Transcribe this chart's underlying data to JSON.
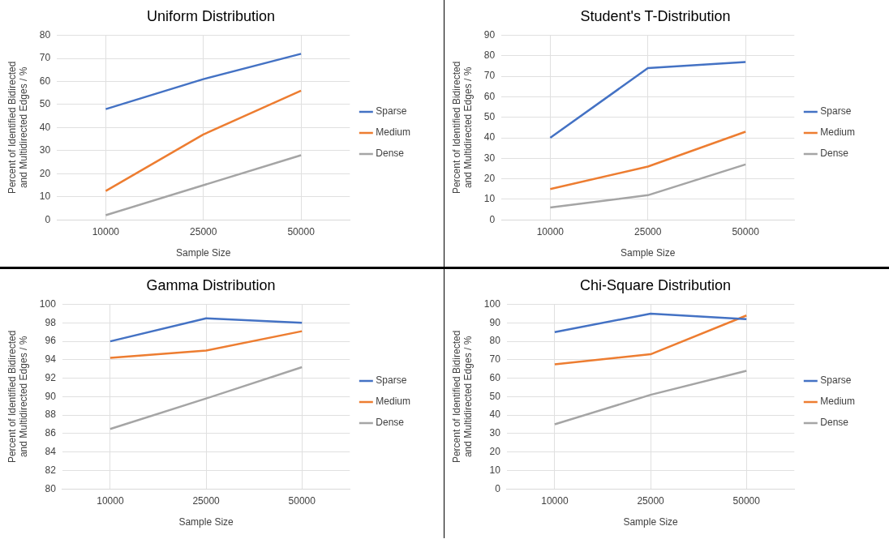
{
  "chart_data": [
    {
      "type": "line",
      "title": "Uniform Distribution",
      "xlabel": "Sample Size",
      "ylabel": "Percent of Identified Bidirected and Multidirected Edges / %",
      "categories": [
        "10000",
        "25000",
        "50000"
      ],
      "ylim": [
        0,
        80
      ],
      "yticks": [
        0,
        10,
        20,
        30,
        40,
        50,
        60,
        70,
        80
      ],
      "grid": true,
      "legend": "right",
      "marker": "none",
      "series": [
        {
          "name": "Sparse",
          "color": "#4472c4",
          "values": [
            48,
            61,
            72
          ]
        },
        {
          "name": "Medium",
          "color": "#ed7d31",
          "values": [
            12.5,
            37,
            56
          ]
        },
        {
          "name": "Dense",
          "color": "#a5a5a5",
          "values": [
            2,
            15,
            28
          ]
        }
      ]
    },
    {
      "type": "line",
      "title": "Student's T-Distribution",
      "xlabel": "Sample Size",
      "ylabel": "Percent of Identified Bidirected and Multidirected Edges / %",
      "categories": [
        "10000",
        "25000",
        "50000"
      ],
      "ylim": [
        0,
        90
      ],
      "yticks": [
        0,
        10,
        20,
        30,
        40,
        50,
        60,
        70,
        80,
        90
      ],
      "grid": true,
      "legend": "right",
      "marker": "none",
      "series": [
        {
          "name": "Sparse",
          "color": "#4472c4",
          "values": [
            40,
            74,
            77
          ]
        },
        {
          "name": "Medium",
          "color": "#ed7d31",
          "values": [
            15,
            26,
            43
          ]
        },
        {
          "name": "Dense",
          "color": "#a5a5a5",
          "values": [
            6,
            12,
            27
          ]
        }
      ]
    },
    {
      "type": "line",
      "title": "Gamma Distribution",
      "xlabel": "Sample Size",
      "ylabel": "Percent of Identified Bidirected and Multidirected Edges / %",
      "categories": [
        "10000",
        "25000",
        "50000"
      ],
      "ylim": [
        80,
        100
      ],
      "yticks": [
        80,
        82,
        84,
        86,
        88,
        90,
        92,
        94,
        96,
        98,
        100
      ],
      "grid": true,
      "legend": "right",
      "marker": "none",
      "series": [
        {
          "name": "Sparse",
          "color": "#4472c4",
          "values": [
            96,
            98.5,
            98
          ]
        },
        {
          "name": "Medium",
          "color": "#ed7d31",
          "values": [
            94.2,
            95,
            97.1
          ]
        },
        {
          "name": "Dense",
          "color": "#a5a5a5",
          "values": [
            86.5,
            89.8,
            93.2
          ]
        }
      ]
    },
    {
      "type": "line",
      "title": "Chi-Square Distribution",
      "xlabel": "Sample Size",
      "ylabel": "Percent of Identified Bidirected and Multidirected Edges / %",
      "categories": [
        "10000",
        "25000",
        "50000"
      ],
      "ylim": [
        0,
        100
      ],
      "yticks": [
        0,
        10,
        20,
        30,
        40,
        50,
        60,
        70,
        80,
        90,
        100
      ],
      "grid": true,
      "legend": "right",
      "marker": "none",
      "series": [
        {
          "name": "Sparse",
          "color": "#4472c4",
          "values": [
            85,
            95,
            92
          ]
        },
        {
          "name": "Medium",
          "color": "#ed7d31",
          "values": [
            67.5,
            73,
            94
          ]
        },
        {
          "name": "Dense",
          "color": "#a5a5a5",
          "values": [
            35,
            51,
            64
          ]
        }
      ]
    }
  ]
}
